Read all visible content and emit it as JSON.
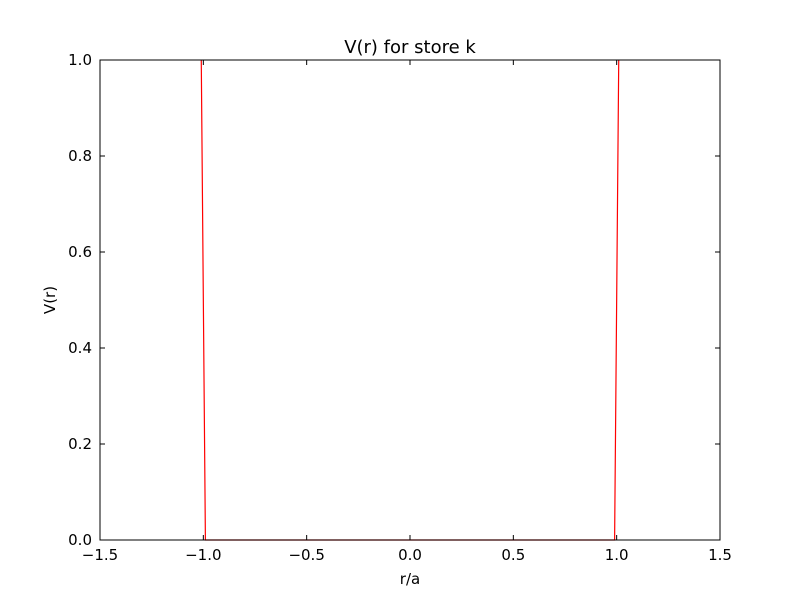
{
  "chart_data": {
    "type": "line",
    "title": "V(r) for store k",
    "xlabel": "r/a",
    "ylabel": "V(r)",
    "xlim": [
      -1.5,
      1.5
    ],
    "ylim": [
      0.0,
      1.0
    ],
    "xticks": [
      -1.5,
      -1.0,
      -0.5,
      0.0,
      0.5,
      1.0,
      1.5
    ],
    "xtick_labels": [
      "−1.5",
      "−1.0",
      "−0.5",
      "0.0",
      "0.5",
      "1.0",
      "1.5"
    ],
    "yticks": [
      0.0,
      0.2,
      0.4,
      0.6,
      0.8,
      1.0
    ],
    "ytick_labels": [
      "0.0",
      "0.2",
      "0.4",
      "0.6",
      "0.8",
      "1.0"
    ],
    "grid": false,
    "series": [
      {
        "color": "#ff0000",
        "x": [
          -1.01,
          -0.99,
          0.99,
          1.01
        ],
        "y": [
          1.0,
          0.0,
          0.0,
          1.0
        ]
      }
    ]
  }
}
